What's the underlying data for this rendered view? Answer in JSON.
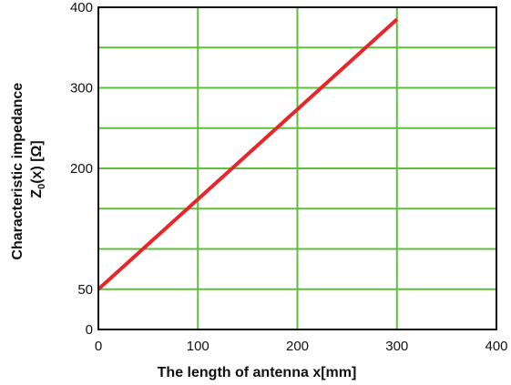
{
  "chart_data": {
    "type": "line",
    "xlabel": "The length of  antenna   x[mm]",
    "ylabel_line1": "Characteristic impedance",
    "ylabel_line2_main": "Z",
    "ylabel_line2_sub": "0",
    "ylabel_line2_rest": "(x)    [Ω]",
    "xlim": [
      0,
      400
    ],
    "ylim": [
      0,
      400
    ],
    "x_ticks": [
      0,
      100,
      200,
      300,
      400
    ],
    "x_tick_labels": [
      "0",
      "100",
      "200",
      "300",
      "400"
    ],
    "y_ticks": [
      0,
      50,
      200,
      300,
      400
    ],
    "y_tick_labels": [
      "0",
      "50",
      "200",
      "300",
      "400"
    ],
    "grid": true,
    "grid_x": [
      100,
      200,
      300
    ],
    "grid_y": [
      50,
      100,
      150,
      200,
      250,
      300,
      350
    ],
    "grid_color": "#5fbf3a",
    "series": [
      {
        "color": "#e8262a",
        "x": [
          0,
          300
        ],
        "y": [
          50,
          385
        ]
      }
    ]
  }
}
